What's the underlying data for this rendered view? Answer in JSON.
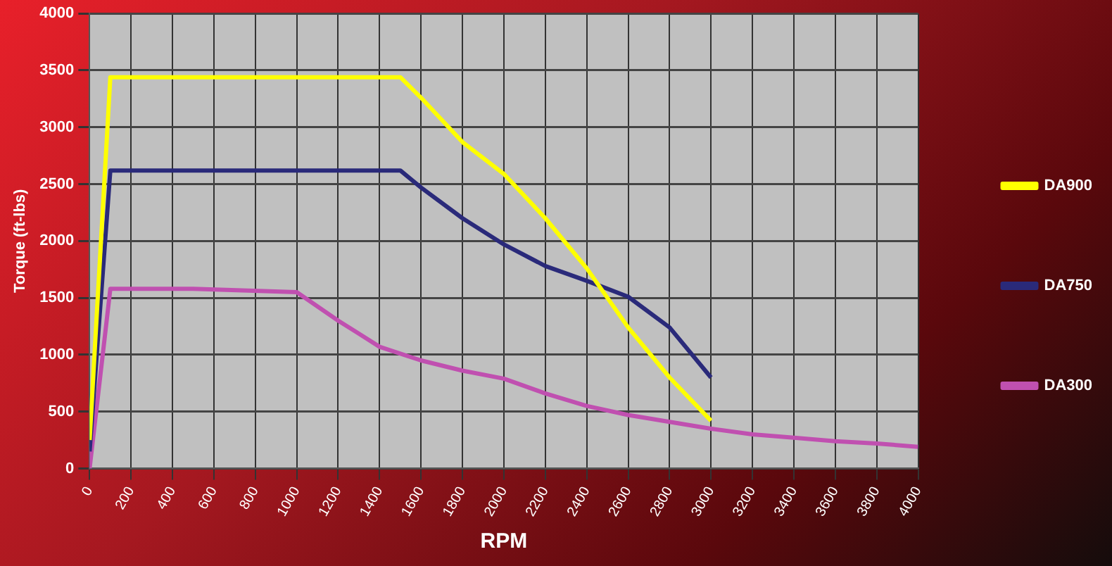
{
  "chart_data": {
    "type": "line",
    "xlabel": "RPM",
    "ylabel": "Torque (ft-lbs)",
    "xlim": [
      0,
      4000
    ],
    "xticks": [
      0,
      200,
      400,
      600,
      800,
      1000,
      1200,
      1400,
      1600,
      1800,
      2000,
      2200,
      2400,
      2600,
      2800,
      3000,
      3200,
      3400,
      3600,
      3800,
      4000
    ],
    "ylim": [
      0,
      4000
    ],
    "yticks": [
      0,
      500,
      1000,
      1500,
      2000,
      2500,
      3000,
      3500,
      4000
    ],
    "grid": true,
    "legend": "right",
    "marker": "none",
    "line_style": "solid",
    "series": [
      {
        "name": "DA900",
        "color": "#ffff00",
        "x": [
          0,
          100,
          1500,
          1600,
          1800,
          2000,
          2200,
          2400,
          2600,
          2800,
          3000
        ],
        "values": [
          250,
          3440,
          3440,
          3260,
          2870,
          2590,
          2200,
          1760,
          1240,
          800,
          420
        ]
      },
      {
        "name": "DA750",
        "color": "#2a2a7a",
        "x": [
          0,
          100,
          1500,
          1600,
          1800,
          2000,
          2200,
          2400,
          2600,
          2800,
          3000
        ],
        "values": [
          150,
          2620,
          2620,
          2470,
          2200,
          1970,
          1780,
          1650,
          1510,
          1240,
          800
        ]
      },
      {
        "name": "DA300",
        "color": "#c050b0",
        "x": [
          0,
          100,
          500,
          1000,
          1200,
          1400,
          1600,
          1800,
          2000,
          2200,
          2400,
          2600,
          2800,
          3000,
          3200,
          3400,
          3600,
          3800,
          4000
        ],
        "values": [
          0,
          1580,
          1580,
          1550,
          1300,
          1070,
          950,
          860,
          790,
          660,
          550,
          470,
          410,
          350,
          300,
          270,
          240,
          220,
          190
        ]
      }
    ]
  }
}
